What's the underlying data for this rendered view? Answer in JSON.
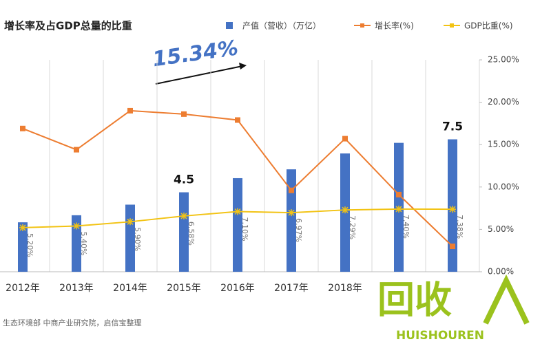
{
  "chart_data": {
    "type": "bar-line",
    "title": "增长率及占GDP总量的比重",
    "annotation": "15.34%",
    "source": "生态环境部 中商产业研究院，启信宝整理",
    "categories": [
      "2012年",
      "2013年",
      "2014年",
      "2015年",
      "2016年",
      "2017年",
      "2018年",
      null,
      null
    ],
    "series": [
      {
        "name": "产值（营收）（万亿）",
        "type": "bar",
        "color": "#4472c4",
        "axis": "y",
        "values": [
          2.8,
          3.2,
          3.8,
          4.5,
          5.3,
          5.8,
          6.7,
          7.3,
          7.5
        ],
        "value_labels": [
          null,
          null,
          null,
          "4.5",
          null,
          null,
          null,
          null,
          "7.5"
        ]
      },
      {
        "name": "增长率(%)",
        "type": "line",
        "color": "#ed7d31",
        "axis": "y2",
        "values": [
          16.9,
          14.4,
          19.0,
          18.6,
          17.9,
          9.6,
          15.7,
          9.1,
          3.0
        ]
      },
      {
        "name": "GDP比重(%)",
        "type": "line",
        "color": "#f2c314",
        "axis": "y2",
        "values": [
          5.2,
          5.4,
          5.9,
          6.58,
          7.1,
          6.97,
          7.29,
          7.4,
          7.38
        ],
        "value_labels": [
          "5.20%",
          "5.40%",
          "5.90%",
          "6.58%",
          "7.10%",
          "6.97%",
          "7.29%",
          "7.40%",
          "7.38%"
        ]
      }
    ],
    "ylim": [
      0,
      12
    ],
    "y2lim": [
      0,
      25
    ],
    "y2ticks": [
      {
        "value": 0,
        "label": "0.00%"
      },
      {
        "value": 5,
        "label": "5.00%"
      },
      {
        "value": 10,
        "label": "10.00%"
      },
      {
        "value": 15,
        "label": "15.00%"
      },
      {
        "value": 20,
        "label": "20.00%"
      },
      {
        "value": 25,
        "label": "25.00%"
      }
    ],
    "grid": true
  },
  "watermark": {
    "text": "回收",
    "subtext": "HUISHOUREN"
  }
}
